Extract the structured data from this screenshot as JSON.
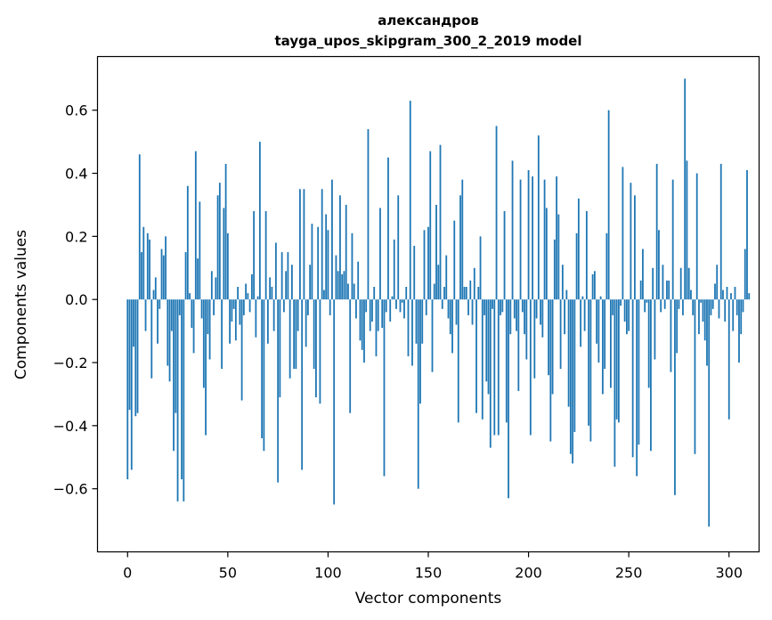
{
  "chart_data": {
    "type": "bar",
    "title_line1": "александров",
    "title_line2": "tayga_upos_skipgram_300_2_2019 model",
    "xlabel": "Vector components",
    "ylabel": "Components values",
    "xlim": [
      -15,
      315
    ],
    "ylim": [
      -0.8,
      0.77
    ],
    "xticks": [
      0,
      50,
      100,
      150,
      200,
      250,
      300
    ],
    "xtick_labels": [
      "0",
      "50",
      "100",
      "150",
      "200",
      "250",
      "300"
    ],
    "yticks": [
      -0.6,
      -0.4,
      -0.2,
      0.0,
      0.2,
      0.4,
      0.6
    ],
    "ytick_labels": [
      "−0.6",
      "−0.4",
      "−0.2",
      "0.0",
      "0.2",
      "0.4",
      "0.6"
    ],
    "bar_color": "#1f77b4",
    "values": [
      -0.57,
      -0.35,
      -0.54,
      -0.15,
      -0.37,
      -0.36,
      0.46,
      0.15,
      0.23,
      -0.1,
      0.21,
      0.19,
      -0.25,
      0.03,
      0.07,
      -0.14,
      -0.03,
      0.16,
      0.14,
      0.2,
      -0.21,
      -0.26,
      -0.1,
      -0.48,
      -0.36,
      -0.64,
      -0.05,
      -0.57,
      -0.64,
      0.15,
      0.36,
      0.02,
      -0.09,
      -0.17,
      0.47,
      0.13,
      0.31,
      -0.06,
      -0.28,
      -0.43,
      -0.11,
      -0.19,
      0.09,
      -0.05,
      0.07,
      0.33,
      0.37,
      -0.22,
      0.29,
      0.43,
      0.21,
      -0.14,
      -0.07,
      -0.03,
      -0.13,
      0.04,
      -0.08,
      -0.32,
      -0.05,
      0.05,
      0.02,
      -0.04,
      0.08,
      0.28,
      -0.12,
      0.01,
      0.5,
      -0.44,
      -0.48,
      0.28,
      -0.14,
      0.07,
      0.04,
      -0.1,
      0.18,
      -0.58,
      -0.31,
      0.15,
      -0.04,
      0.09,
      0.15,
      -0.25,
      0.11,
      -0.22,
      -0.22,
      -0.1,
      0.35,
      -0.54,
      0.35,
      -0.15,
      -0.05,
      0.11,
      0.24,
      -0.22,
      -0.31,
      0.23,
      -0.33,
      0.35,
      0.03,
      0.27,
      0.22,
      -0.05,
      0.38,
      -0.65,
      0.14,
      0.09,
      0.33,
      0.08,
      0.09,
      0.3,
      0.05,
      -0.36,
      0.21,
      0.05,
      -0.06,
      0.12,
      -0.13,
      -0.16,
      -0.2,
      -0.04,
      0.54,
      -0.1,
      -0.07,
      0.04,
      -0.18,
      -0.1,
      0.29,
      -0.09,
      -0.56,
      -0.04,
      0.45,
      -0.07,
      0.01,
      0.19,
      -0.03,
      0.33,
      -0.04,
      -0.01,
      -0.06,
      0.04,
      -0.18,
      0.63,
      -0.21,
      0.17,
      -0.14,
      -0.6,
      -0.33,
      -0.14,
      0.22,
      -0.05,
      0.23,
      0.47,
      -0.23,
      0.05,
      0.3,
      0.11,
      0.49,
      -0.03,
      0.04,
      0.14,
      -0.06,
      -0.11,
      -0.17,
      0.25,
      -0.08,
      -0.39,
      0.33,
      0.38,
      0.04,
      0.04,
      -0.05,
      0.06,
      -0.08,
      0.1,
      -0.36,
      0.04,
      0.2,
      -0.38,
      -0.05,
      -0.26,
      -0.3,
      -0.47,
      -0.03,
      -0.43,
      0.55,
      -0.43,
      -0.05,
      -0.04,
      0.28,
      -0.39,
      -0.63,
      -0.11,
      0.44,
      -0.06,
      -0.1,
      -0.29,
      0.38,
      -0.04,
      -0.11,
      -0.19,
      0.41,
      -0.43,
      0.39,
      -0.25,
      -0.06,
      0.52,
      -0.08,
      -0.12,
      0.38,
      0.29,
      -0.24,
      -0.45,
      -0.3,
      0.19,
      0.39,
      0.27,
      -0.22,
      0.11,
      -0.11,
      0.03,
      -0.34,
      -0.49,
      -0.52,
      -0.42,
      0.21,
      0.32,
      -0.15,
      0.01,
      -0.1,
      0.28,
      -0.4,
      -0.45,
      0.08,
      0.09,
      -0.14,
      -0.2,
      0.01,
      -0.3,
      -0.22,
      0.21,
      0.6,
      -0.28,
      -0.05,
      -0.53,
      -0.38,
      -0.39,
      -0.02,
      0.42,
      -0.07,
      -0.11,
      -0.1,
      0.37,
      -0.5,
      0.33,
      -0.56,
      -0.46,
      0.06,
      0.16,
      -0.04,
      -0.01,
      -0.28,
      -0.48,
      0.1,
      -0.19,
      0.43,
      0.22,
      -0.04,
      0.11,
      -0.03,
      0.06,
      0.06,
      -0.23,
      0.38,
      -0.62,
      -0.17,
      -0.03,
      0.1,
      -0.05,
      0.7,
      0.44,
      0.1,
      0.03,
      -0.05,
      -0.49,
      0.4,
      -0.11,
      -0.01,
      -0.07,
      -0.13,
      -0.21,
      -0.72,
      -0.05,
      -0.03,
      0.05,
      0.11,
      -0.06,
      0.43,
      0.03,
      -0.07,
      0.04,
      -0.38,
      0.02,
      -0.1,
      0.04,
      -0.05,
      -0.2,
      -0.11,
      -0.04,
      0.16,
      0.41,
      0.02
    ]
  }
}
